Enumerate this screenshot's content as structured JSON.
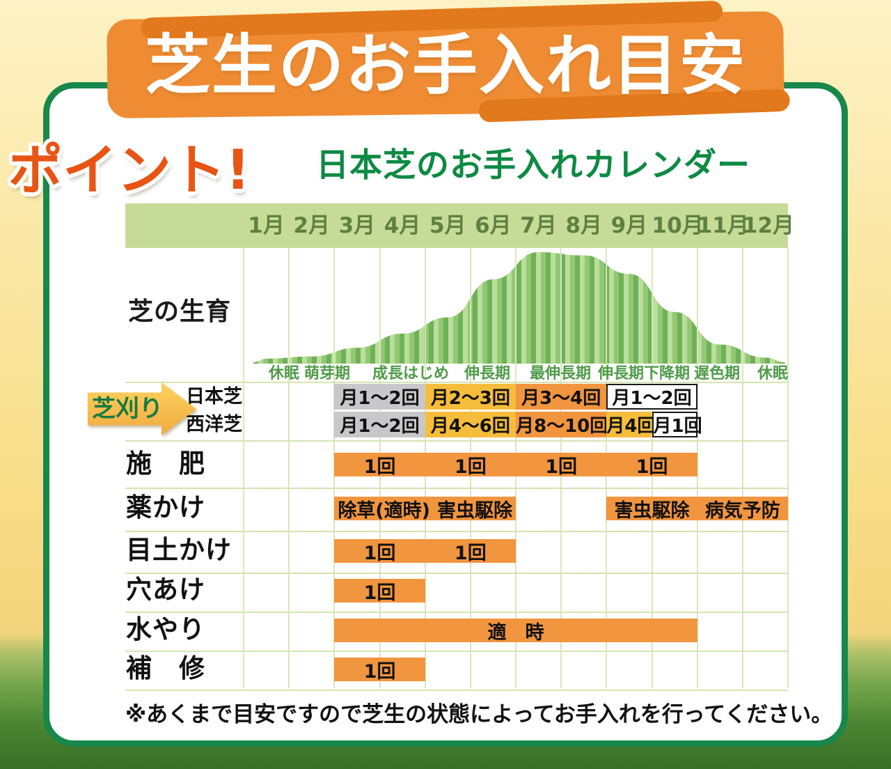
{
  "header": {
    "title": "芝生のお手入れ目安",
    "point_label": "ポイント!",
    "subtitle": "日本芝のお手入れカレンダー"
  },
  "mowing_arrow_label": "芝刈り",
  "footnote": "※あくまで目安ですので芝生の状態によってお手入れを行ってください。",
  "colors": {
    "banner_orange": "#ef8c33",
    "point_orange_red": "#e85414",
    "frame_green": "#17874b",
    "subtitle_green": "#0d8a43",
    "month_header_green": "#c7db99",
    "bar_orange": "#f2953f",
    "bar_yellow": "#f6bd3c",
    "bar_gray": "#c8c8ca",
    "bar_white": "#ffffff",
    "growth_stripe_green": "#8cc56d"
  },
  "chart_data": [
    {
      "type": "area",
      "title": "芝の生育",
      "x": [
        "1月",
        "2月",
        "3月",
        "4月",
        "5月",
        "6月",
        "7月",
        "8月",
        "9月",
        "10月",
        "11月",
        "12月"
      ],
      "values": [
        2,
        4,
        12,
        25,
        40,
        75,
        100,
        97,
        80,
        45,
        15,
        3
      ],
      "ylim": [
        0,
        100
      ],
      "grid": true,
      "phase_labels": [
        "休眠",
        "萌芽期",
        "成長はじめ",
        "伸長期",
        "最伸長期",
        "伸長期下降期",
        "遅色期",
        "休眠"
      ]
    },
    {
      "type": "table",
      "title": "日本芝のお手入れカレンダー",
      "mowing_rows": [
        {
          "label": "日本芝",
          "bars": [
            {
              "text": "月1～2回",
              "start": 3,
              "end": 4,
              "style": "gray"
            },
            {
              "text": "月2～3回",
              "start": 5,
              "end": 6,
              "style": "yellow"
            },
            {
              "text": "月3～4回",
              "start": 7,
              "end": 8,
              "style": "orange"
            },
            {
              "text": "月1～2回",
              "start": 9,
              "end": 10,
              "style": "white"
            }
          ]
        },
        {
          "label": "西洋芝",
          "bars": [
            {
              "text": "月1～2回",
              "start": 3,
              "end": 4,
              "style": "gray"
            },
            {
              "text": "月4～6回",
              "start": 5,
              "end": 6,
              "style": "yellow"
            },
            {
              "text": "月8～10回",
              "start": 7,
              "end": 8,
              "style": "orange"
            },
            {
              "text": "月4回",
              "start": 9,
              "end": 9,
              "style": "yellow"
            },
            {
              "text": "月1回",
              "start": 10,
              "end": 10,
              "style": "white"
            }
          ]
        }
      ],
      "activity_rows": [
        {
          "label": "施　肥",
          "bars": [
            {
              "texts": [
                "1回",
                "1回",
                "1回",
                "1回"
              ],
              "start": 3,
              "end": 10,
              "style": "orange"
            }
          ]
        },
        {
          "label": "薬かけ",
          "bars": [
            {
              "texts": [
                "除草(適時)",
                "害虫駆除"
              ],
              "start": 3,
              "end": 6,
              "style": "orange"
            },
            {
              "texts": [
                "害虫駆除",
                "病気予防"
              ],
              "start": 9,
              "end": 12,
              "style": "orange"
            }
          ]
        },
        {
          "label": "目土かけ",
          "bars": [
            {
              "texts": [
                "1回",
                "1回"
              ],
              "start": 3,
              "end": 6,
              "style": "orange"
            }
          ]
        },
        {
          "label": "穴あけ",
          "bars": [
            {
              "texts": [
                "1回"
              ],
              "start": 3,
              "end": 4,
              "style": "orange"
            }
          ]
        },
        {
          "label": "水やり",
          "bars": [
            {
              "texts": [
                "適　時"
              ],
              "start": 3,
              "end": 10,
              "style": "orange"
            }
          ]
        },
        {
          "label": "補　修",
          "bars": [
            {
              "texts": [
                "1回"
              ],
              "start": 3,
              "end": 4,
              "style": "orange"
            }
          ]
        }
      ]
    }
  ]
}
